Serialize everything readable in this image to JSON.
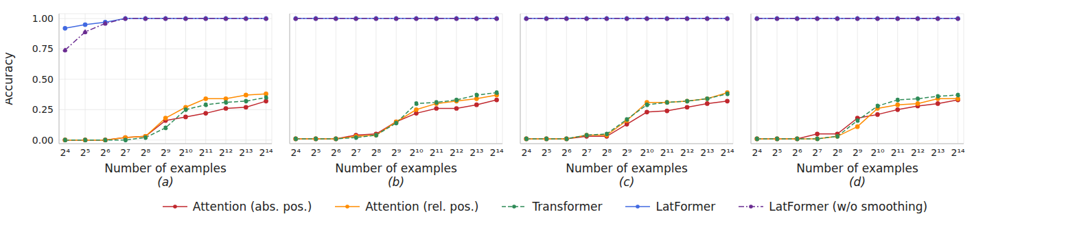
{
  "chart_data": [
    {
      "type": "line",
      "title": "(a)",
      "x_label": "Number of examples",
      "y_label": "Accuracy",
      "log": "x",
      "grid": true,
      "legend": "bottom",
      "x": [
        16,
        32,
        64,
        128,
        256,
        512,
        1024,
        2048,
        4096,
        8192,
        16384
      ],
      "xlim": [
        13,
        20000
      ],
      "xticks": [
        {
          "value": 16,
          "label": "2⁴"
        },
        {
          "value": 32,
          "label": "2⁵"
        },
        {
          "value": 64,
          "label": "2⁶"
        },
        {
          "value": 128,
          "label": "2⁷"
        },
        {
          "value": 256,
          "label": "2⁸"
        },
        {
          "value": 512,
          "label": "2⁹"
        },
        {
          "value": 1024,
          "label": "2¹⁰"
        },
        {
          "value": 2048,
          "label": "2¹¹"
        },
        {
          "value": 4096,
          "label": "2¹²"
        },
        {
          "value": 8192,
          "label": "2¹³"
        },
        {
          "value": 16384,
          "label": "2¹⁴"
        }
      ],
      "ylim": [
        -0.03,
        1.04
      ],
      "yticks": [
        {
          "value": 0,
          "label": "0.00"
        },
        {
          "value": 0.25,
          "label": "0.25"
        },
        {
          "value": 0.5,
          "label": "0.50"
        },
        {
          "value": 0.75,
          "label": "0.75"
        },
        {
          "value": 1,
          "label": "1.00"
        }
      ],
      "series": [
        {
          "name": "Attention (abs. pos.)",
          "color": "#c0272d",
          "marker": "circle",
          "line_style": "solid",
          "values": [
            0,
            0,
            0,
            0.02,
            0.03,
            0.16,
            0.19,
            0.22,
            0.26,
            0.27,
            0.32
          ]
        },
        {
          "name": "Attention (rel. pos.)",
          "color": "#ff8c00",
          "marker": "circle",
          "line_style": "solid",
          "values": [
            0,
            0,
            0,
            0.02,
            0.03,
            0.18,
            0.27,
            0.34,
            0.34,
            0.37,
            0.38
          ]
        },
        {
          "name": "Transformer",
          "color": "#2e8b57",
          "marker": "circle",
          "line_style": "dashed",
          "values": [
            0,
            0,
            0,
            0,
            0.02,
            0.1,
            0.25,
            0.29,
            0.31,
            0.32,
            0.35
          ]
        },
        {
          "name": "LatFormer",
          "color": "#4169e1",
          "marker": "circle",
          "line_style": "solid",
          "values": [
            0.92,
            0.95,
            0.97,
            1,
            1,
            1,
            1,
            1,
            1,
            1,
            1
          ]
        },
        {
          "name": "LatFormer (w/o smoothing)",
          "color": "#6a2c91",
          "marker": "circle",
          "line_style": "dashdot",
          "values": [
            0.74,
            0.89,
            0.96,
            1,
            1,
            1,
            1,
            1,
            1,
            1,
            1
          ]
        }
      ]
    },
    {
      "type": "line",
      "title": "(b)",
      "x_label": "Number of examples",
      "log": "x",
      "grid": true,
      "tick_labels": "x",
      "x": [
        16,
        32,
        64,
        128,
        256,
        512,
        1024,
        2048,
        4096,
        8192,
        16384
      ],
      "xlim": [
        13,
        20000
      ],
      "xticks": [
        {
          "value": 16,
          "label": "2⁴"
        },
        {
          "value": 32,
          "label": "2⁵"
        },
        {
          "value": 64,
          "label": "2⁶"
        },
        {
          "value": 128,
          "label": "2⁷"
        },
        {
          "value": 256,
          "label": "2⁸"
        },
        {
          "value": 512,
          "label": "2⁹"
        },
        {
          "value": 1024,
          "label": "2¹⁰"
        },
        {
          "value": 2048,
          "label": "2¹¹"
        },
        {
          "value": 4096,
          "label": "2¹²"
        },
        {
          "value": 8192,
          "label": "2¹³"
        },
        {
          "value": 16384,
          "label": "2¹⁴"
        }
      ],
      "ylim": [
        -0.03,
        1.04
      ],
      "yticks": [
        0,
        0.25,
        0.5,
        0.75,
        1
      ],
      "series": [
        {
          "name": "Attention (abs. pos.)",
          "color": "#c0272d",
          "marker": "circle",
          "line_style": "solid",
          "values": [
            0.01,
            0.01,
            0.01,
            0.04,
            0.05,
            0.15,
            0.22,
            0.26,
            0.26,
            0.29,
            0.33
          ]
        },
        {
          "name": "Attention (rel. pos.)",
          "color": "#ff8c00",
          "marker": "circle",
          "line_style": "solid",
          "values": [
            0.01,
            0.01,
            0.01,
            0.03,
            0.04,
            0.15,
            0.25,
            0.3,
            0.32,
            0.34,
            0.37
          ]
        },
        {
          "name": "Transformer",
          "color": "#2e8b57",
          "marker": "circle",
          "line_style": "dashed",
          "values": [
            0.01,
            0.01,
            0.01,
            0.02,
            0.04,
            0.14,
            0.3,
            0.31,
            0.33,
            0.37,
            0.39
          ]
        },
        {
          "name": "LatFormer",
          "color": "#4169e1",
          "marker": "circle",
          "line_style": "solid",
          "values": [
            1,
            1,
            1,
            1,
            1,
            1,
            1,
            1,
            1,
            1,
            1
          ]
        },
        {
          "name": "LatFormer (w/o smoothing)",
          "color": "#6a2c91",
          "marker": "circle",
          "line_style": "dashdot",
          "values": [
            1,
            1,
            1,
            1,
            1,
            1,
            1,
            1,
            1,
            1,
            1
          ]
        }
      ]
    },
    {
      "type": "line",
      "title": "(c)",
      "x_label": "Number of examples",
      "log": "x",
      "grid": true,
      "tick_labels": "x",
      "x": [
        16,
        32,
        64,
        128,
        256,
        512,
        1024,
        2048,
        4096,
        8192,
        16384
      ],
      "xlim": [
        13,
        20000
      ],
      "xticks": [
        {
          "value": 16,
          "label": "2⁴"
        },
        {
          "value": 32,
          "label": "2⁵"
        },
        {
          "value": 64,
          "label": "2⁶"
        },
        {
          "value": 128,
          "label": "2⁷"
        },
        {
          "value": 256,
          "label": "2⁸"
        },
        {
          "value": 512,
          "label": "2⁹"
        },
        {
          "value": 1024,
          "label": "2¹⁰"
        },
        {
          "value": 2048,
          "label": "2¹¹"
        },
        {
          "value": 4096,
          "label": "2¹²"
        },
        {
          "value": 8192,
          "label": "2¹³"
        },
        {
          "value": 16384,
          "label": "2¹⁴"
        }
      ],
      "ylim": [
        -0.03,
        1.04
      ],
      "yticks": [
        0,
        0.25,
        0.5,
        0.75,
        1
      ],
      "series": [
        {
          "name": "Attention (abs. pos.)",
          "color": "#c0272d",
          "marker": "circle",
          "line_style": "solid",
          "values": [
            0.01,
            0.01,
            0.01,
            0.03,
            0.03,
            0.13,
            0.23,
            0.24,
            0.27,
            0.3,
            0.32
          ]
        },
        {
          "name": "Attention (rel. pos.)",
          "color": "#ff8c00",
          "marker": "circle",
          "line_style": "solid",
          "values": [
            0.01,
            0.01,
            0.01,
            0.04,
            0.04,
            0.16,
            0.31,
            0.31,
            0.32,
            0.34,
            0.39
          ]
        },
        {
          "name": "Transformer",
          "color": "#2e8b57",
          "marker": "circle",
          "line_style": "dashed",
          "values": [
            0.01,
            0.01,
            0.01,
            0.04,
            0.05,
            0.17,
            0.29,
            0.31,
            0.32,
            0.34,
            0.38
          ]
        },
        {
          "name": "LatFormer",
          "color": "#4169e1",
          "marker": "circle",
          "line_style": "solid",
          "values": [
            1,
            1,
            1,
            1,
            1,
            1,
            1,
            1,
            1,
            1,
            1
          ]
        },
        {
          "name": "LatFormer (w/o smoothing)",
          "color": "#6a2c91",
          "marker": "circle",
          "line_style": "dashdot",
          "values": [
            1,
            1,
            1,
            1,
            1,
            1,
            1,
            1,
            1,
            1,
            1
          ]
        }
      ]
    },
    {
      "type": "line",
      "title": "(d)",
      "x_label": "Number of examples",
      "log": "x",
      "grid": true,
      "tick_labels": "x",
      "x": [
        16,
        32,
        64,
        128,
        256,
        512,
        1024,
        2048,
        4096,
        8192,
        16384
      ],
      "xlim": [
        13,
        20000
      ],
      "xticks": [
        {
          "value": 16,
          "label": "2⁴"
        },
        {
          "value": 32,
          "label": "2⁵"
        },
        {
          "value": 64,
          "label": "2⁶"
        },
        {
          "value": 128,
          "label": "2⁷"
        },
        {
          "value": 256,
          "label": "2⁸"
        },
        {
          "value": 512,
          "label": "2⁹"
        },
        {
          "value": 1024,
          "label": "2¹⁰"
        },
        {
          "value": 2048,
          "label": "2¹¹"
        },
        {
          "value": 4096,
          "label": "2¹²"
        },
        {
          "value": 8192,
          "label": "2¹³"
        },
        {
          "value": 16384,
          "label": "2¹⁴"
        }
      ],
      "ylim": [
        -0.03,
        1.04
      ],
      "yticks": [
        0,
        0.25,
        0.5,
        0.75,
        1
      ],
      "series": [
        {
          "name": "Attention (abs. pos.)",
          "color": "#c0272d",
          "marker": "circle",
          "line_style": "solid",
          "values": [
            0.01,
            0.01,
            0.01,
            0.05,
            0.05,
            0.18,
            0.21,
            0.25,
            0.28,
            0.3,
            0.33
          ]
        },
        {
          "name": "Attention (rel. pos.)",
          "color": "#ff8c00",
          "marker": "circle",
          "line_style": "solid",
          "values": [
            0.01,
            0.01,
            0.01,
            0.01,
            0.03,
            0.11,
            0.26,
            0.29,
            0.3,
            0.34,
            0.34
          ]
        },
        {
          "name": "Transformer",
          "color": "#2e8b57",
          "marker": "circle",
          "line_style": "dashed",
          "values": [
            0.01,
            0.01,
            0.01,
            0.01,
            0.03,
            0.16,
            0.28,
            0.33,
            0.34,
            0.36,
            0.37
          ]
        },
        {
          "name": "LatFormer",
          "color": "#4169e1",
          "marker": "circle",
          "line_style": "solid",
          "values": [
            1,
            1,
            1,
            1,
            1,
            1,
            1,
            1,
            1,
            1,
            1
          ]
        },
        {
          "name": "LatFormer (w/o smoothing)",
          "color": "#6a2c91",
          "marker": "circle",
          "line_style": "dashdot",
          "values": [
            1,
            1,
            1,
            1,
            1,
            1,
            1,
            1,
            1,
            1,
            1
          ]
        }
      ]
    }
  ]
}
